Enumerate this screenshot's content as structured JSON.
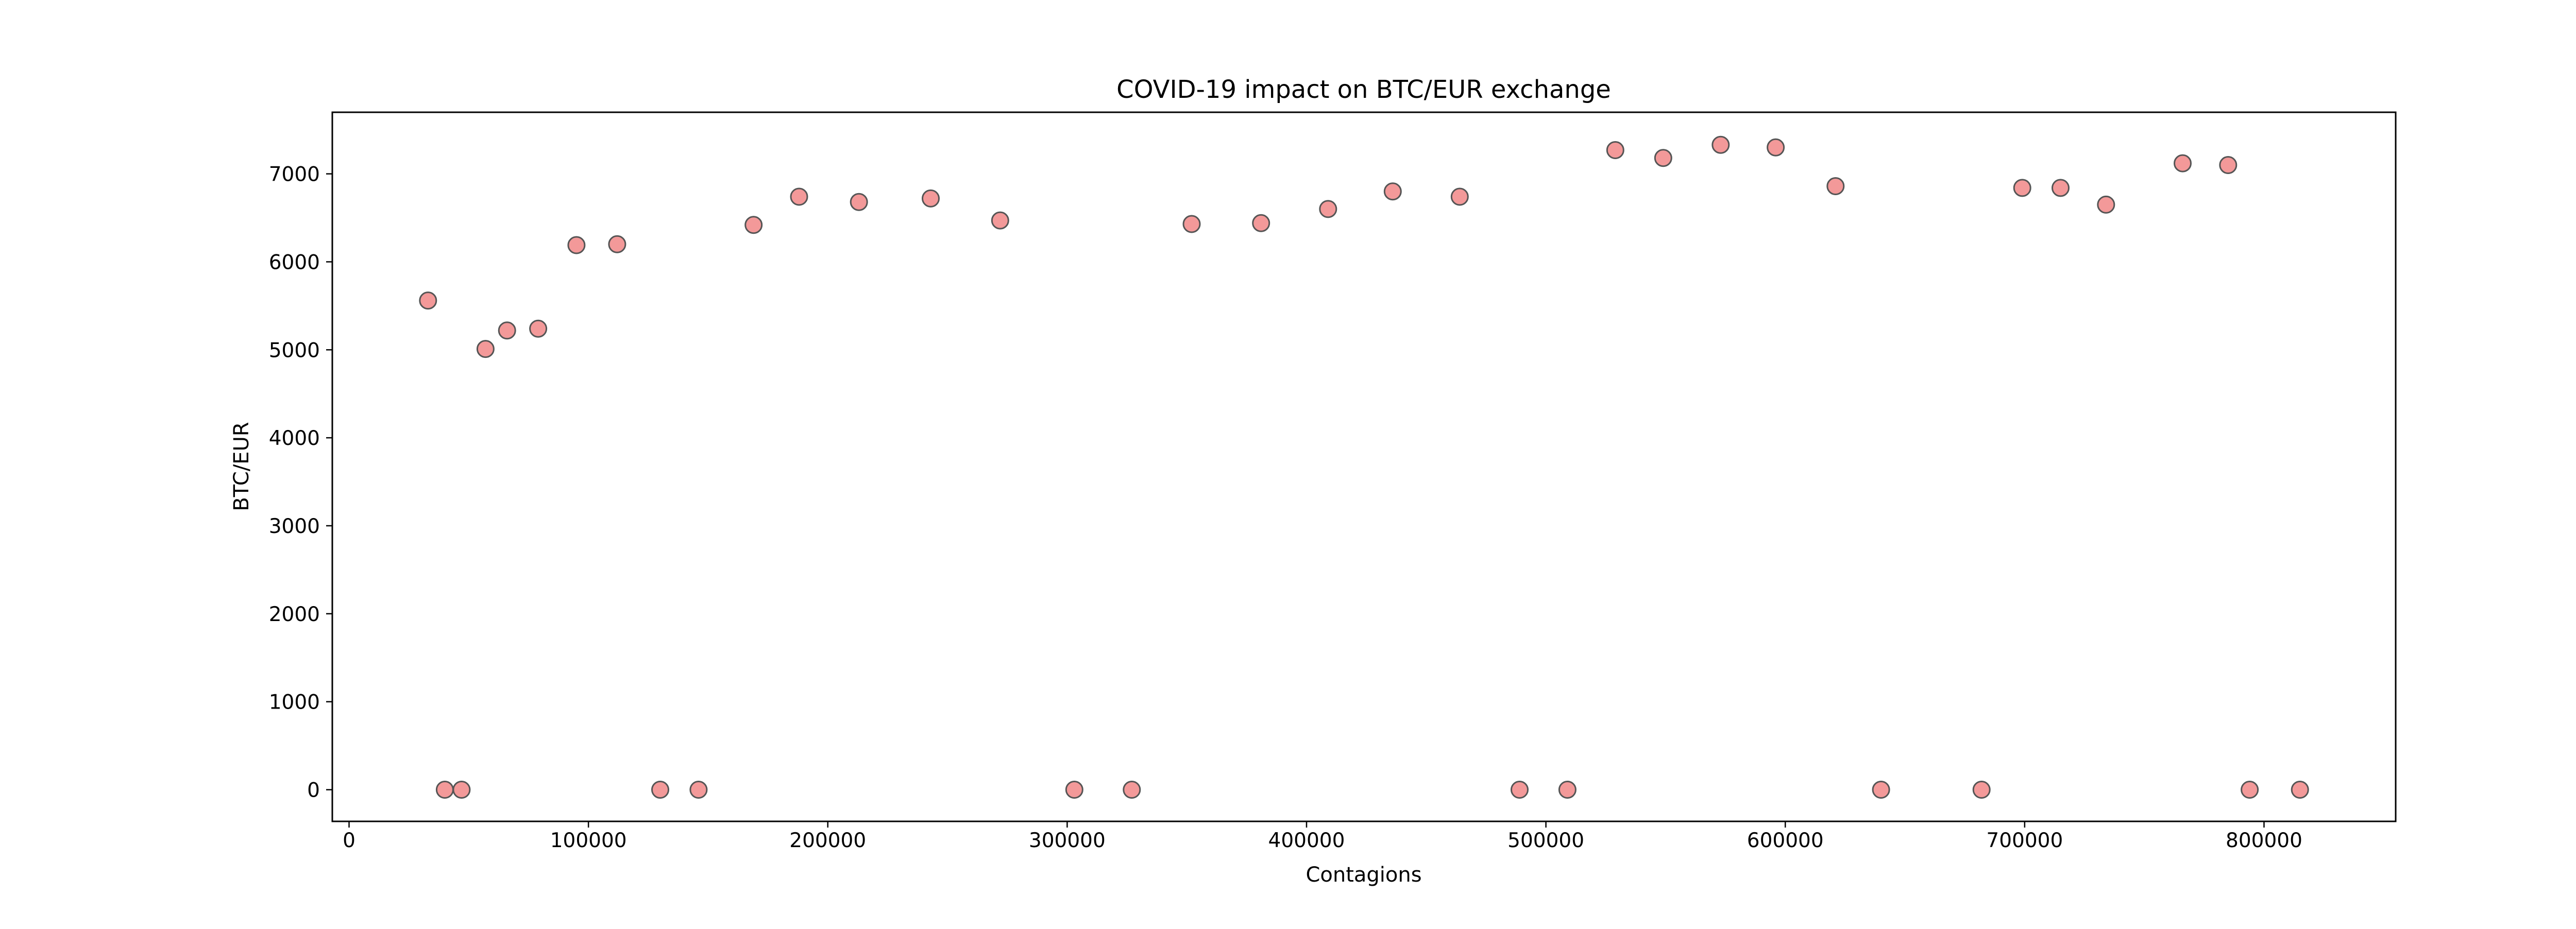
{
  "chart_data": {
    "type": "scatter",
    "title": "COVID-19 impact on BTC/EUR exchange",
    "xlabel": "Contagions",
    "ylabel": "BTC/EUR",
    "xlim": [
      -7000,
      855000
    ],
    "ylim": [
      -360,
      7700
    ],
    "x_ticks": [
      0,
      100000,
      200000,
      300000,
      400000,
      500000,
      600000,
      700000,
      800000
    ],
    "y_ticks": [
      0,
      1000,
      2000,
      3000,
      4000,
      5000,
      6000,
      7000
    ],
    "grid": false,
    "legend": "none",
    "marker_color": "#f08080",
    "marker_edge_color": "#555555",
    "marker_alpha": 0.8,
    "series": [
      {
        "x": [
          33000,
          40000,
          47000,
          57000,
          66000,
          79000,
          95000,
          112000,
          130000,
          146000,
          169000,
          188000,
          213000,
          243000,
          272000,
          303000,
          327000,
          352000,
          381000,
          409000,
          436000,
          464000,
          489000,
          509000,
          529000,
          549000,
          573000,
          596000,
          621000,
          640000,
          682000,
          699000,
          715000,
          734000,
          766000,
          785000,
          794000,
          815000
        ],
        "y": [
          5560,
          0,
          0,
          5010,
          5220,
          5240,
          6190,
          6200,
          0,
          0,
          6420,
          6740,
          6680,
          6720,
          6470,
          0,
          0,
          6430,
          6440,
          6600,
          6800,
          6740,
          0,
          0,
          7270,
          7180,
          7330,
          7300,
          6860,
          0,
          0,
          6840,
          6840,
          6650,
          7120,
          7100,
          0,
          0
        ]
      }
    ]
  }
}
